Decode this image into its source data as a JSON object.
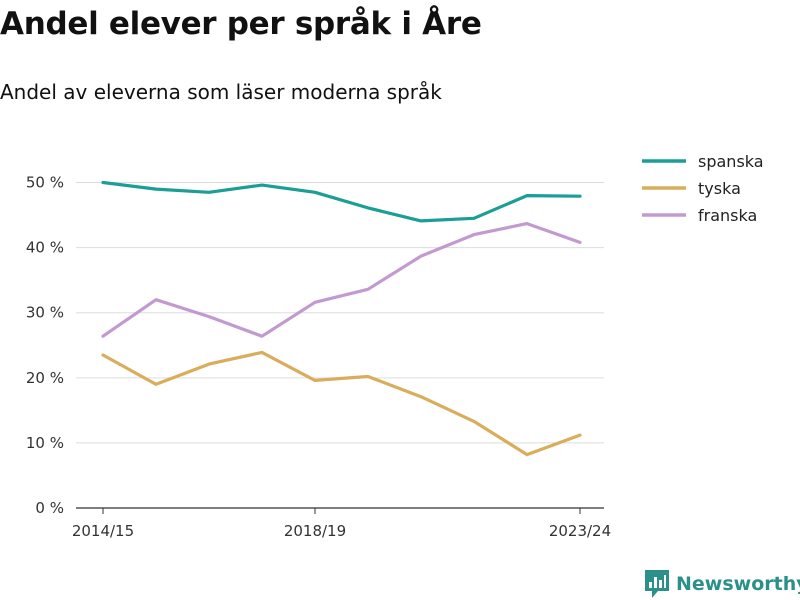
{
  "title": "Andel elever per språk i Åre",
  "subtitle": "Andel av eleverna som läser moderna språk",
  "brand": {
    "name": "Newsworthy",
    "color": "#2b8f8a",
    "icon": "bar-chart-speech-bubble-icon"
  },
  "chart_data": {
    "type": "line",
    "x": [
      "2014/15",
      "2015/16",
      "2016/17",
      "2017/18",
      "2018/19",
      "2019/20",
      "2020/21",
      "2021/22",
      "2022/23",
      "2023/24"
    ],
    "x_tick_labels": [
      "2014/15",
      "2018/19",
      "2023/24"
    ],
    "y_ticks": [
      0,
      10,
      20,
      30,
      40,
      50
    ],
    "y_tick_labels": [
      "0 %",
      "10 %",
      "20 %",
      "30 %",
      "40 %",
      "50 %"
    ],
    "ylim": [
      0,
      55
    ],
    "grid": true,
    "legend_position": "top-right",
    "series": [
      {
        "name": "spanska",
        "color": "#1a9e96",
        "values": [
          50.0,
          49.0,
          48.5,
          49.6,
          48.5,
          46.1,
          44.1,
          44.5,
          48.0,
          47.9
        ]
      },
      {
        "name": "tyska",
        "color": "#d9ad5b",
        "values": [
          23.5,
          19.0,
          22.1,
          23.9,
          19.6,
          20.2,
          17.1,
          13.3,
          8.2,
          11.2
        ]
      },
      {
        "name": "franska",
        "color": "#c39ad0",
        "values": [
          26.4,
          32.0,
          29.4,
          26.4,
          31.6,
          33.6,
          38.7,
          42.0,
          43.7,
          40.8
        ]
      }
    ]
  }
}
